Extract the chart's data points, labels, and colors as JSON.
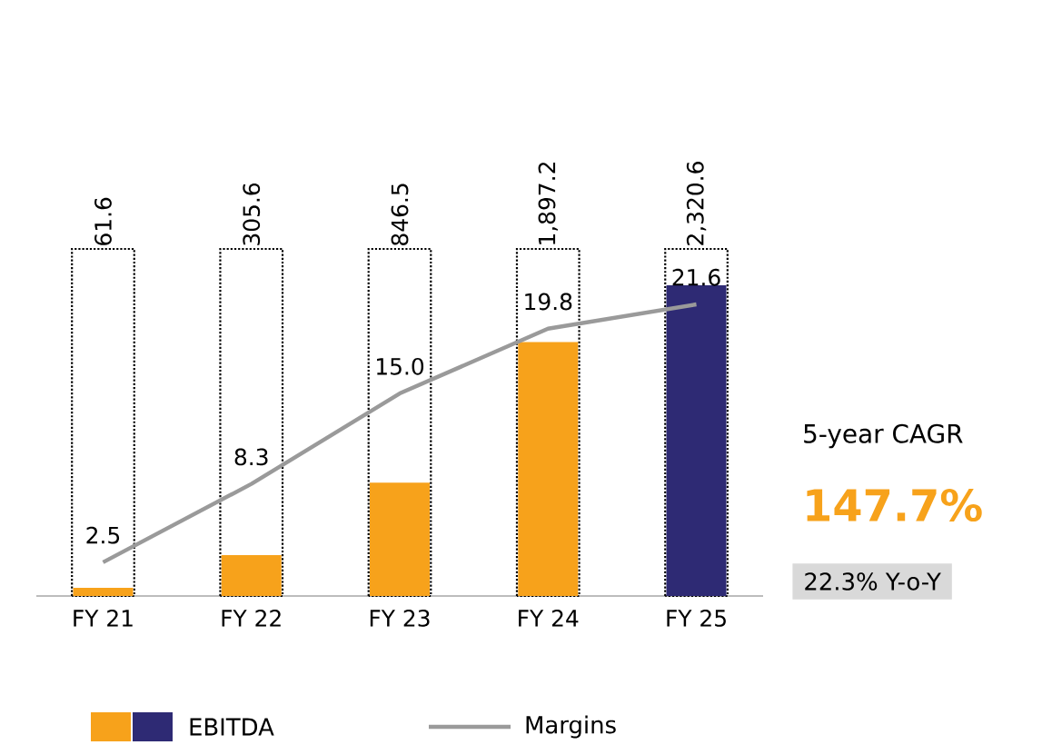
{
  "chart_data": {
    "type": "bar",
    "categories": [
      "FY 21",
      "FY 22",
      "FY 23",
      "FY 24",
      "FY 25"
    ],
    "series": [
      {
        "name": "EBITDA",
        "colors": [
          "#f7a21b",
          "#f7a21b",
          "#f7a21b",
          "#f7a21b",
          "#2e2a74"
        ],
        "values": [
          61.6,
          305.6,
          846.5,
          1897.2,
          2320.6
        ],
        "value_labels": [
          "61.6",
          "305.6",
          "846.5",
          "1,897.2",
          "2,320.6"
        ]
      },
      {
        "name": "Margins",
        "type": "line",
        "axis": "y2",
        "color": "#9a9a9a",
        "values": [
          2.5,
          8.3,
          15.0,
          19.8,
          21.6
        ],
        "value_labels": [
          "2.5",
          "8.3",
          "15.0",
          "19.8",
          "21.6"
        ]
      }
    ],
    "annotations": [
      "5-year CAGR",
      "147.7%",
      "22.3% Y-o-Y"
    ],
    "legend": "bottom"
  }
}
